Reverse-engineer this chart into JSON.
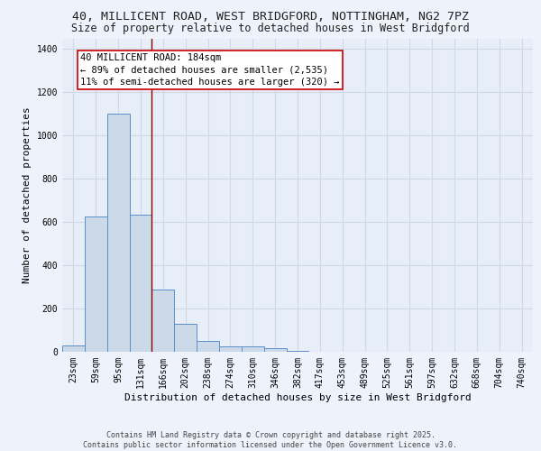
{
  "title_line1": "40, MILLICENT ROAD, WEST BRIDGFORD, NOTTINGHAM, NG2 7PZ",
  "title_line2": "Size of property relative to detached houses in West Bridgford",
  "xlabel": "Distribution of detached houses by size in West Bridgford",
  "ylabel": "Number of detached properties",
  "bar_color": "#ccd9e8",
  "bar_edge_color": "#5b8fc9",
  "background_color": "#e8eef8",
  "fig_background_color": "#eef2fb",
  "grid_color": "#d0d8e8",
  "vline_color": "#8b0000",
  "categories": [
    "23sqm",
    "59sqm",
    "95sqm",
    "131sqm",
    "166sqm",
    "202sqm",
    "238sqm",
    "274sqm",
    "310sqm",
    "346sqm",
    "382sqm",
    "417sqm",
    "453sqm",
    "489sqm",
    "525sqm",
    "561sqm",
    "597sqm",
    "632sqm",
    "668sqm",
    "704sqm",
    "740sqm"
  ],
  "values": [
    30,
    625,
    1100,
    635,
    290,
    130,
    50,
    25,
    25,
    15,
    5,
    0,
    0,
    0,
    0,
    0,
    0,
    0,
    0,
    0,
    0
  ],
  "ylim": [
    0,
    1450
  ],
  "yticks": [
    0,
    200,
    400,
    600,
    800,
    1000,
    1200,
    1400
  ],
  "annotation_text": "40 MILLICENT ROAD: 184sqm\n← 89% of detached houses are smaller (2,535)\n11% of semi-detached houses are larger (320) →",
  "vline_x_index": 4.5,
  "footer_text": "Contains HM Land Registry data © Crown copyright and database right 2025.\nContains public sector information licensed under the Open Government Licence v3.0.",
  "title_fontsize": 9.5,
  "subtitle_fontsize": 8.5,
  "tick_fontsize": 7,
  "ylabel_fontsize": 8,
  "xlabel_fontsize": 8,
  "annotation_fontsize": 7.5,
  "footer_fontsize": 6
}
